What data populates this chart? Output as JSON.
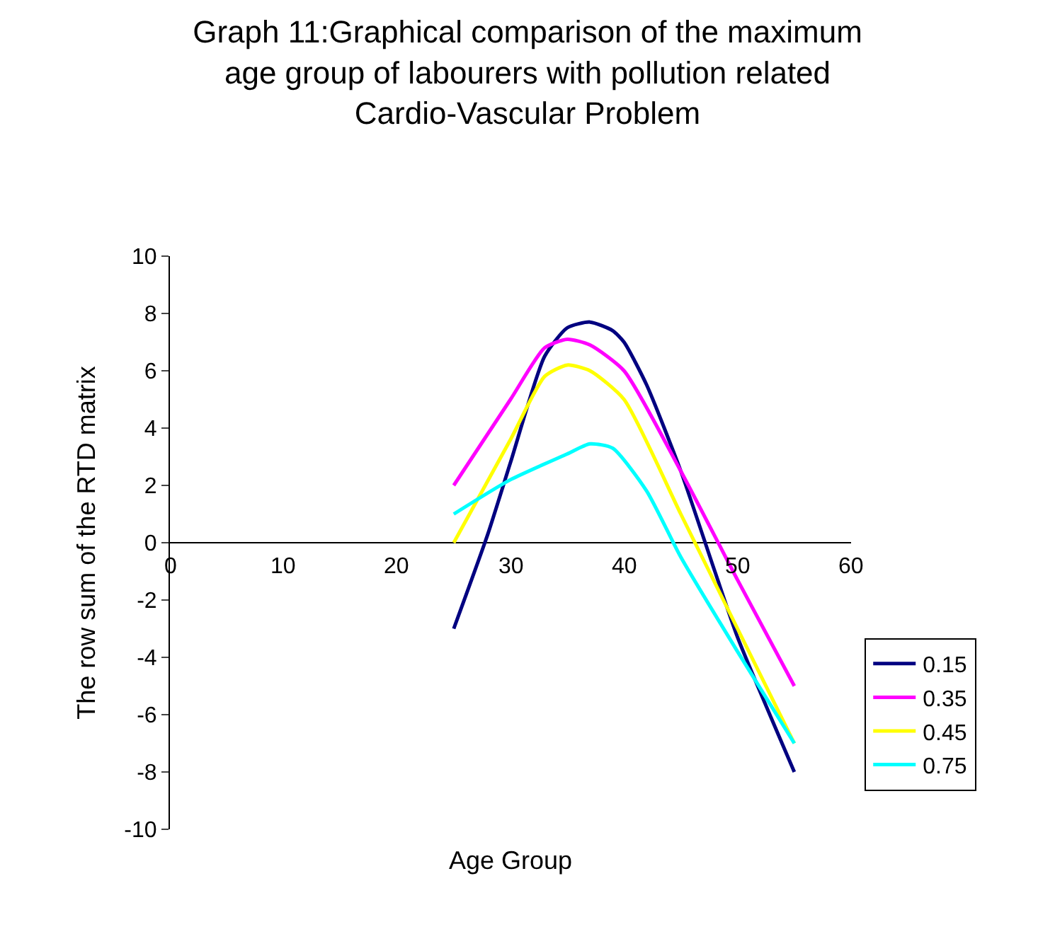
{
  "chart_data": {
    "type": "line",
    "title": "Graph 11:Graphical comparison of the maximum age group of labourers with pollution related Cardio-Vascular Problem",
    "xlabel": "Age Group",
    "ylabel": "The row sum of the RTD matrix",
    "xlim": [
      0,
      60
    ],
    "xticks": [
      0,
      10,
      20,
      30,
      40,
      50,
      60
    ],
    "ylim": [
      -10,
      10
    ],
    "yticks": [
      -10,
      -8,
      -6,
      -4,
      -2,
      0,
      2,
      4,
      6,
      8,
      10
    ],
    "legend": "right",
    "marker": "none",
    "line_style": "solid",
    "series": [
      {
        "name": "0.15",
        "color": "#000080",
        "x": [
          25,
          28,
          30,
          33,
          35,
          37,
          39,
          40,
          42,
          45,
          48,
          50,
          55
        ],
        "values": [
          -3,
          0.3,
          2.8,
          6.5,
          7.5,
          7.7,
          7.4,
          7.0,
          5.5,
          2.5,
          -1,
          -3.3,
          -8
        ]
      },
      {
        "name": "0.35",
        "color": "#ff00ff",
        "x": [
          25,
          30,
          33,
          35,
          37,
          40,
          45,
          50,
          55
        ],
        "values": [
          2,
          5,
          6.8,
          7.1,
          6.9,
          6.0,
          2.5,
          -1.3,
          -5
        ]
      },
      {
        "name": "0.45",
        "color": "#ffff00",
        "x": [
          25,
          30,
          33,
          35,
          37,
          40,
          45,
          50,
          55
        ],
        "values": [
          0,
          3.6,
          5.8,
          6.2,
          6.0,
          5.0,
          1.0,
          -3.0,
          -7
        ]
      },
      {
        "name": "0.75",
        "color": "#00ffff",
        "x": [
          25,
          30,
          35,
          37,
          39,
          42,
          45,
          50,
          55
        ],
        "values": [
          1,
          2.2,
          3.1,
          3.45,
          3.3,
          1.8,
          -0.5,
          -3.8,
          -7
        ]
      }
    ]
  }
}
